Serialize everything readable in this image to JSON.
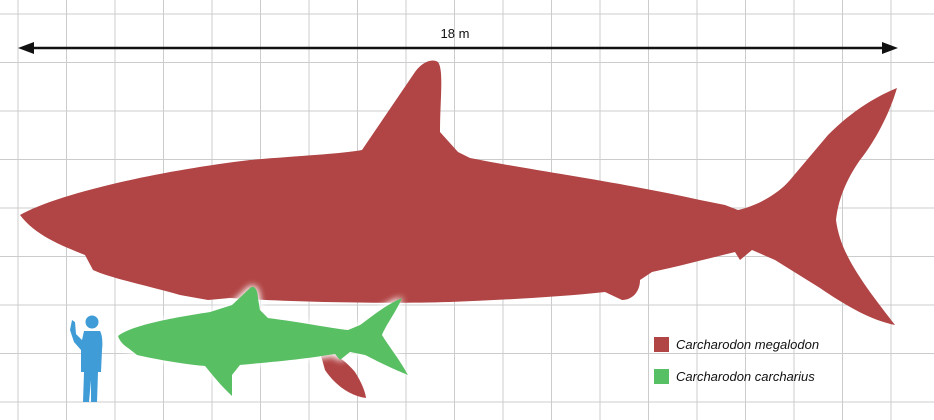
{
  "scale": {
    "label": "18 m"
  },
  "legend": [
    {
      "label": "Carcharodon megalodon",
      "color": "#b14444"
    },
    {
      "label": "Carcharodon carcharius",
      "color": "#58c064"
    }
  ],
  "colors": {
    "megalodon": "#b14444",
    "great_white": "#58c064",
    "human": "#3f9cd7",
    "grid": "#cccccc",
    "arrow": "#111111"
  },
  "icons": {
    "human": "human-silhouette-icon",
    "megalodon": "megalodon-silhouette-icon",
    "great_white": "great-white-silhouette-icon"
  }
}
